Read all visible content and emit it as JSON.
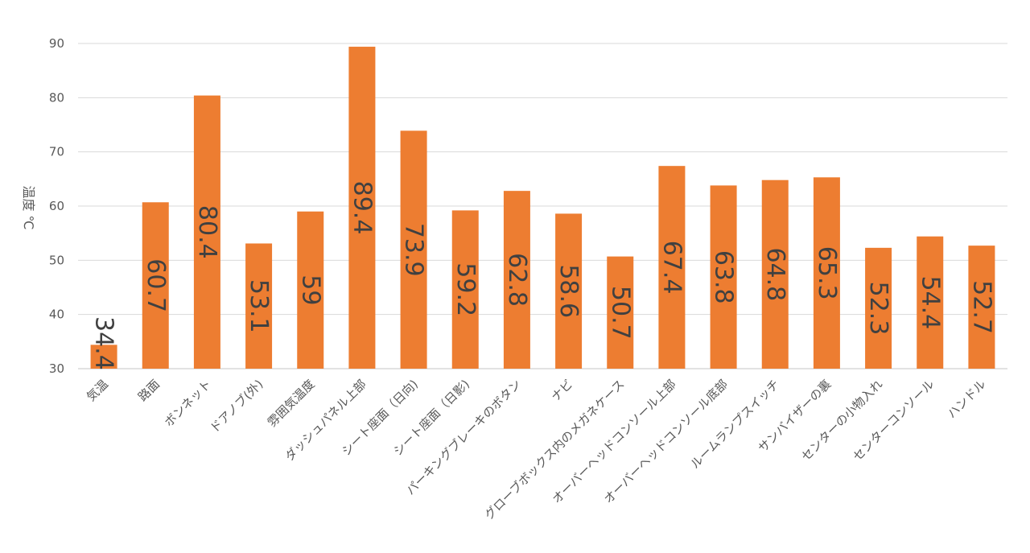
{
  "chart_data": {
    "type": "bar",
    "categories": [
      "気温",
      "路面",
      "ボンネット",
      "ドアノブ(外)",
      "雰囲気温度",
      "ダッシュパネル上部",
      "シート座面（日向)",
      "シート座面（日影)",
      "パーキングブレーキのボタン",
      "ナビ",
      "グローブボックス内のメガネケース",
      "オーバーヘッドコンソール上部",
      "オーバーヘッドコンソール底部",
      "ルームランプスイッチ",
      "サンバイザーの裏",
      "センターの小物入れ",
      "センターコンソール",
      "ハンドル"
    ],
    "values": [
      34.4,
      60.7,
      80.4,
      53.1,
      59,
      89.4,
      73.9,
      59.2,
      62.8,
      58.6,
      50.7,
      67.4,
      63.8,
      64.8,
      65.3,
      52.3,
      54.4,
      52.7
    ],
    "data_labels": [
      "34.4",
      "60.7",
      "80.4",
      "53.1",
      "59",
      "89.4",
      "73.9",
      "59.2",
      "62.8",
      "58.6",
      "50.7",
      "67.4",
      "63.8",
      "64.8",
      "65.3",
      "52.3",
      "54.4",
      "52.7"
    ],
    "title": "",
    "xlabel": "",
    "ylabel": "温度 ℃",
    "ylim": [
      30,
      90
    ],
    "yticks": [
      "30",
      "40",
      "50",
      "60",
      "70",
      "80",
      "90"
    ],
    "grid": true,
    "bar_color": "#ED7D31",
    "grid_color": "#D9D9D9"
  }
}
